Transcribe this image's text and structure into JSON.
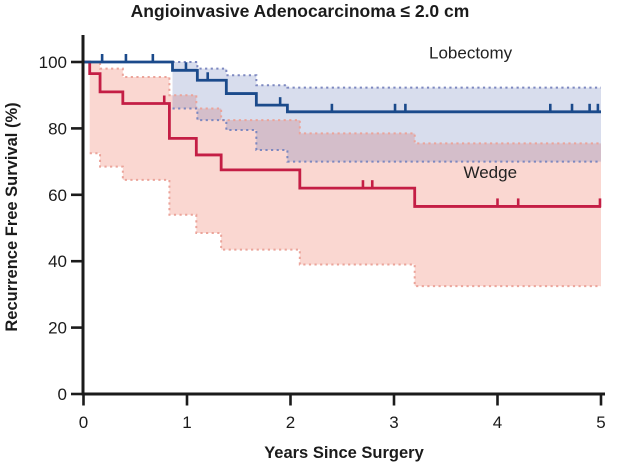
{
  "chart_data": {
    "type": "line",
    "subtype": "kaplan-meier-step",
    "title": "Angioinvasive Adenocarcinoma ≤ 2.0 cm",
    "xlabel": "Years Since Surgery",
    "ylabel": "Recurrence Free Survival (%)",
    "xlim": [
      0,
      5
    ],
    "ylim": [
      0,
      100
    ],
    "x_ticks": [
      0,
      1,
      2,
      3,
      4,
      5
    ],
    "y_ticks": [
      0,
      20,
      40,
      60,
      80,
      100
    ],
    "grid": false,
    "legend_position": "inline-annotations",
    "axis_color": "#1b1b1b",
    "series": [
      {
        "name": "Wedge",
        "line_color": "#c41e45",
        "ci_line_color": "#eba49a",
        "ci_fill_color": "rgba(238,122,102,0.30)",
        "label_anchor": {
          "t": 3.93,
          "v": 65.0
        },
        "t_end": 5.0,
        "steps": [
          [
            0,
            100
          ],
          [
            0.06,
            96.5
          ],
          [
            0.16,
            91
          ],
          [
            0.38,
            87.5
          ],
          [
            0.83,
            77
          ],
          [
            1.09,
            72
          ],
          [
            1.33,
            67.5
          ],
          [
            2.09,
            62
          ],
          [
            3.2,
            56.5
          ]
        ],
        "censor_marks": [
          [
            0.78,
            87.5
          ],
          [
            2.7,
            62
          ],
          [
            2.79,
            62
          ],
          [
            4.0,
            56.5
          ],
          [
            4.2,
            56.5
          ],
          [
            4.99,
            56.5
          ]
        ],
        "ci_upper": [
          [
            0.06,
            100
          ],
          [
            0.16,
            98
          ],
          [
            0.38,
            95.5
          ],
          [
            0.83,
            90
          ],
          [
            1.09,
            86
          ],
          [
            1.33,
            82.5
          ],
          [
            2.09,
            78.5
          ],
          [
            3.2,
            75.5
          ]
        ],
        "ci_lower": [
          [
            0.06,
            72.5
          ],
          [
            0.16,
            68.5
          ],
          [
            0.38,
            64.5
          ],
          [
            0.83,
            54
          ],
          [
            1.09,
            48.5
          ],
          [
            1.33,
            43.5
          ],
          [
            2.09,
            39
          ],
          [
            3.2,
            32.5
          ]
        ]
      },
      {
        "name": "Lobectomy",
        "line_color": "#1b4a8b",
        "ci_line_color": "#7d88c0",
        "ci_fill_color": "rgba(90,111,180,0.24)",
        "label_anchor": {
          "t": 3.74,
          "v": 101.0
        },
        "t_end": 5.0,
        "steps": [
          [
            0,
            100
          ],
          [
            0.86,
            97.5
          ],
          [
            1.1,
            94.5
          ],
          [
            1.38,
            90.5
          ],
          [
            1.67,
            87
          ],
          [
            1.97,
            85
          ]
        ],
        "censor_marks": [
          [
            0.18,
            100
          ],
          [
            0.41,
            100
          ],
          [
            0.67,
            100
          ],
          [
            0.99,
            97.5
          ],
          [
            1.2,
            94.5
          ],
          [
            1.9,
            87
          ],
          [
            2.4,
            85
          ],
          [
            3.01,
            85
          ],
          [
            3.11,
            85
          ],
          [
            4.51,
            85
          ],
          [
            4.72,
            85
          ],
          [
            4.89,
            85
          ],
          [
            4.97,
            85
          ]
        ],
        "ci_upper": [
          [
            0.86,
            100
          ],
          [
            1.1,
            98
          ],
          [
            1.38,
            96
          ],
          [
            1.67,
            93
          ],
          [
            1.97,
            92.3
          ]
        ],
        "ci_lower": [
          [
            0.86,
            86
          ],
          [
            1.1,
            82.5
          ],
          [
            1.38,
            79.5
          ],
          [
            1.67,
            73.5
          ],
          [
            1.97,
            70
          ]
        ]
      }
    ]
  }
}
